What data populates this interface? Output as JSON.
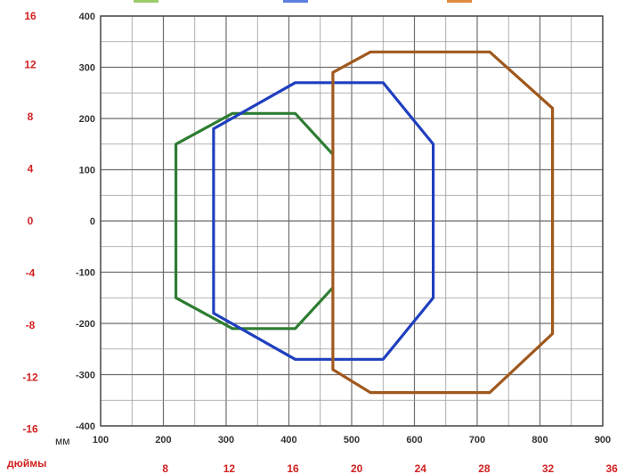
{
  "chart_data": {
    "type": "line",
    "title": "",
    "x_unit_label": "мм",
    "inch_unit_label": "дюймы",
    "xlim": [
      100,
      900
    ],
    "ylim": [
      -400,
      400
    ],
    "x_ticks": [
      "100",
      "200",
      "300",
      "400",
      "500",
      "600",
      "700",
      "800",
      "900"
    ],
    "y_ticks": [
      "400",
      "300",
      "200",
      "100",
      "0",
      "-100",
      "-200",
      "-300",
      "-400"
    ],
    "x_inch_ticks": [
      {
        "label": "8",
        "mm": 203.2
      },
      {
        "label": "12",
        "mm": 304.8
      },
      {
        "label": "16",
        "mm": 406.4
      },
      {
        "label": "20",
        "mm": 508
      },
      {
        "label": "24",
        "mm": 609.6
      },
      {
        "label": "28",
        "mm": 711.2
      },
      {
        "label": "32",
        "mm": 812.8
      },
      {
        "label": "36",
        "mm": 914.4
      }
    ],
    "y_inch_ticks": [
      {
        "label": "16",
        "mm": 406.4
      },
      {
        "label": "12",
        "mm": 304.8
      },
      {
        "label": "8",
        "mm": 203.2
      },
      {
        "label": "4",
        "mm": 101.6
      },
      {
        "label": "0",
        "mm": 0
      },
      {
        "label": "-4",
        "mm": -101.6
      },
      {
        "label": "-8",
        "mm": -203.2
      },
      {
        "label": "-12",
        "mm": -304.8
      },
      {
        "label": "-16",
        "mm": -406.4
      }
    ],
    "grid": true,
    "series": [
      {
        "color": "#2e7d32",
        "points": [
          [
            470,
            130
          ],
          [
            410,
            210
          ],
          [
            310,
            210
          ],
          [
            220,
            150
          ],
          [
            220,
            -150
          ],
          [
            310,
            -210
          ],
          [
            410,
            -210
          ],
          [
            470,
            -130
          ]
        ]
      },
      {
        "color": "#1f3fbf",
        "points": [
          [
            280,
            180
          ],
          [
            410,
            270
          ],
          [
            550,
            270
          ],
          [
            630,
            150
          ],
          [
            630,
            -150
          ],
          [
            550,
            -270
          ],
          [
            410,
            -270
          ],
          [
            280,
            -180
          ],
          [
            280,
            180
          ]
        ]
      },
      {
        "color": "#a0581c",
        "points": [
          [
            470,
            290
          ],
          [
            530,
            330
          ],
          [
            720,
            330
          ],
          [
            820,
            220
          ],
          [
            820,
            -220
          ],
          [
            720,
            -335
          ],
          [
            530,
            -335
          ],
          [
            470,
            -290
          ],
          [
            470,
            290
          ]
        ]
      }
    ],
    "legend_colors": [
      "#9acd6a",
      "#5b7fe0",
      "#e08a40"
    ]
  }
}
